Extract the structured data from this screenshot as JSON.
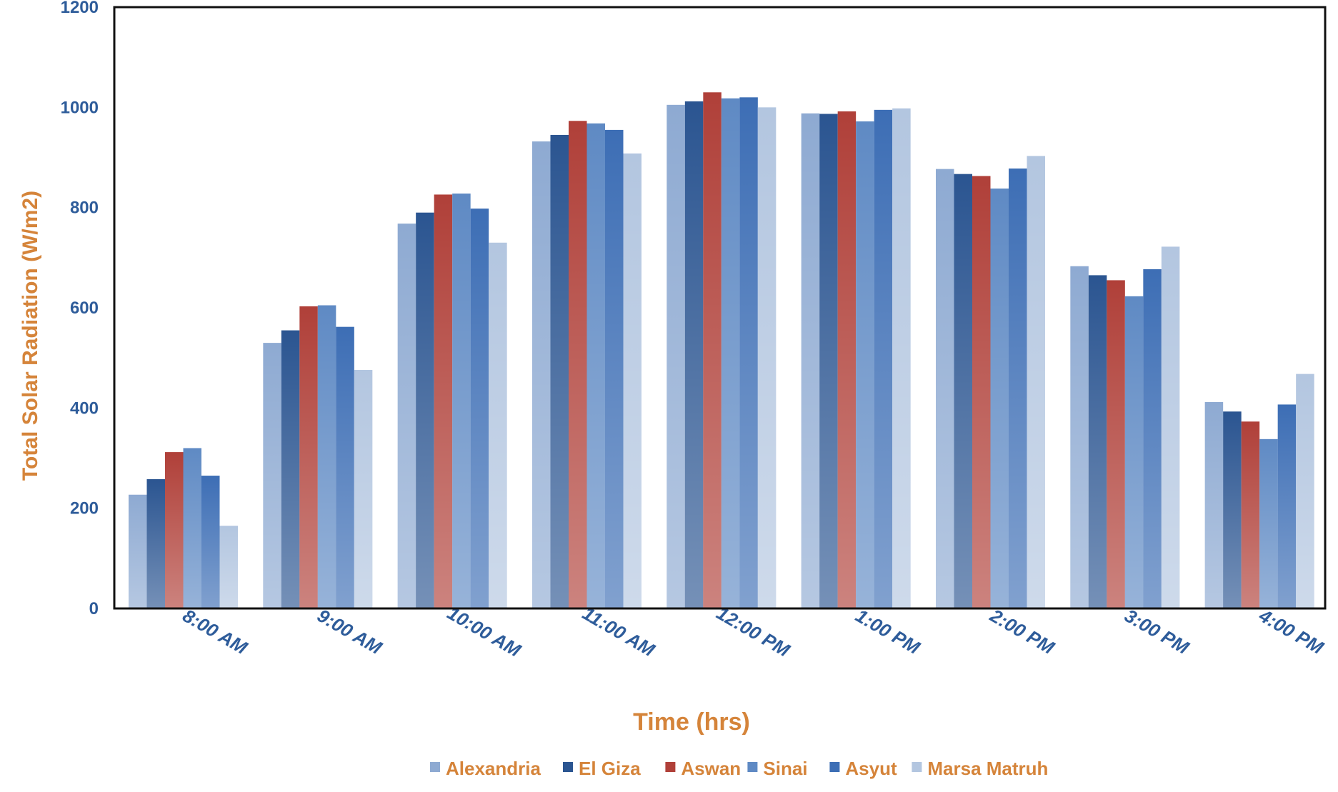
{
  "chart_data": {
    "type": "bar",
    "xlabel": "Time (hrs)",
    "ylabel": "Total Solar Radiation (W/m2)",
    "ylim": [
      0,
      1200
    ],
    "yticks": [
      0,
      200,
      400,
      600,
      800,
      1000,
      1200
    ],
    "grid": false,
    "legend_position": "bottom",
    "categories": [
      "8:00 AM",
      "9:00 AM",
      "10:00 AM",
      "11:00 AM",
      "12:00 PM",
      "1:00 PM",
      "2:00 PM",
      "3:00 PM",
      "4:00 PM"
    ],
    "series": [
      {
        "name": "Alexandria",
        "color": "#8eaad2",
        "values": [
          227,
          530,
          768,
          932,
          1005,
          988,
          877,
          683,
          412
        ]
      },
      {
        "name": "El Giza",
        "color": "#2b5591",
        "values": [
          258,
          555,
          790,
          945,
          1012,
          987,
          867,
          665,
          393
        ]
      },
      {
        "name": "Aswan",
        "color": "#b04039",
        "values": [
          312,
          603,
          826,
          973,
          1030,
          992,
          863,
          655,
          373
        ]
      },
      {
        "name": "Sinai",
        "color": "#5f8ac4",
        "values": [
          320,
          605,
          828,
          968,
          1018,
          972,
          838,
          623,
          338
        ]
      },
      {
        "name": "Asyut",
        "color": "#3d6eb5",
        "values": [
          265,
          562,
          798,
          955,
          1020,
          995,
          878,
          677,
          407
        ]
      },
      {
        "name": "Marsa Matruh",
        "color": "#b3c6e0",
        "values": [
          165,
          476,
          730,
          908,
          1000,
          998,
          903,
          722,
          468
        ]
      }
    ]
  }
}
